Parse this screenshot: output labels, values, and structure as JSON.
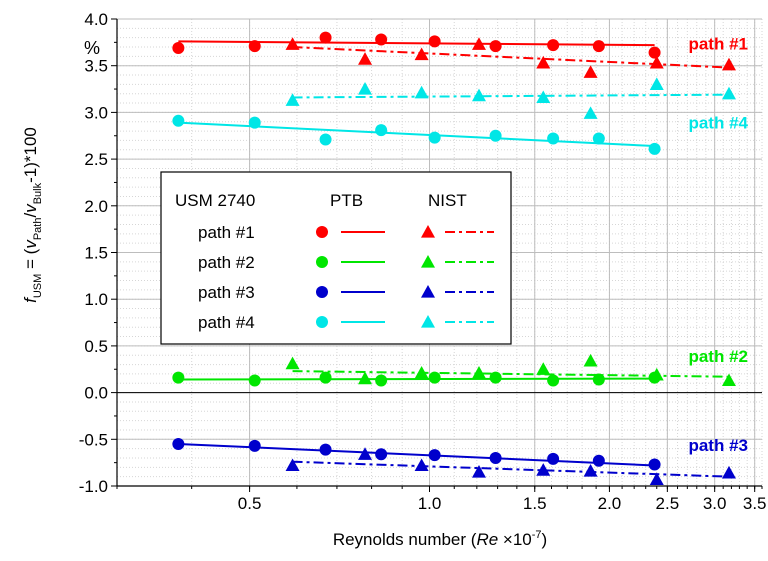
{
  "chart_data": {
    "type": "scatter",
    "xscale": "log",
    "xlim": [
      0.3,
      3.6
    ],
    "ylim": [
      -1.0,
      4.0
    ],
    "xlabel_prefix": "Reynolds number (",
    "xlabel_var": "Re",
    "xlabel_mid": " ×10",
    "xlabel_exp": "-7",
    "xlabel_suffix": ")",
    "ylabel_f": "f",
    "ylabel_usm": "USM",
    "ylabel_eq": " = (",
    "ylabel_v1": "v",
    "ylabel_path": "Path",
    "ylabel_slash": "/",
    "ylabel_v2": "v",
    "ylabel_bulk": "Bulk",
    "ylabel_tail": "-1)*100",
    "y_unit": "%",
    "grid": true,
    "x_ticks": [
      {
        "value": 0.5,
        "label": "0.5"
      },
      {
        "value": 1.0,
        "label": "1.0"
      },
      {
        "value": 1.5,
        "label": "1.5"
      },
      {
        "value": 2.0,
        "label": "2.0"
      },
      {
        "value": 2.5,
        "label": "2.5"
      },
      {
        "value": 3.0,
        "label": "3.0"
      },
      {
        "value": 3.5,
        "label": "3.5"
      }
    ],
    "y_ticks": [
      {
        "value": 4.0,
        "label": "4.0"
      },
      {
        "value": 3.5,
        "label": "3.5"
      },
      {
        "value": 3.0,
        "label": "3.0"
      },
      {
        "value": 2.5,
        "label": "2.5"
      },
      {
        "value": 2.0,
        "label": "2.0"
      },
      {
        "value": 1.5,
        "label": "1.5"
      },
      {
        "value": 1.0,
        "label": "1.0"
      },
      {
        "value": 0.5,
        "label": "0.5"
      },
      {
        "value": 0.0,
        "label": "0.0"
      },
      {
        "value": -0.5,
        "label": "-0.5"
      },
      {
        "value": -1.0,
        "label": "-1.0"
      }
    ],
    "series": [
      {
        "name": "path #1",
        "label": "path #1",
        "color": "#ff0000",
        "label_y": 3.74,
        "ptb": {
          "x": [
            0.38,
            0.51,
            0.67,
            0.83,
            1.02,
            1.29,
            1.61,
            1.92,
            2.38
          ],
          "y": [
            3.69,
            3.71,
            3.8,
            3.78,
            3.76,
            3.71,
            3.72,
            3.71,
            3.64
          ],
          "fit": [
            [
              0.38,
              3.76
            ],
            [
              2.38,
              3.72
            ]
          ]
        },
        "nist": {
          "x": [
            0.59,
            0.78,
            0.97,
            1.21,
            1.55,
            1.86,
            2.4,
            3.17
          ],
          "y": [
            3.73,
            3.57,
            3.62,
            3.73,
            3.53,
            3.43,
            3.53,
            3.51
          ],
          "fit": [
            [
              0.59,
              3.7
            ],
            [
              3.17,
              3.48
            ]
          ]
        }
      },
      {
        "name": "path #2",
        "label": "path #2",
        "color": "#00e600",
        "label_y": 0.39,
        "ptb": {
          "x": [
            0.38,
            0.51,
            0.67,
            0.83,
            1.02,
            1.29,
            1.61,
            1.92,
            2.38
          ],
          "y": [
            0.16,
            0.13,
            0.16,
            0.13,
            0.16,
            0.16,
            0.13,
            0.14,
            0.16
          ],
          "fit": [
            [
              0.38,
              0.14
            ],
            [
              2.38,
              0.15
            ]
          ]
        },
        "nist": {
          "x": [
            0.59,
            0.78,
            0.97,
            1.21,
            1.55,
            1.86,
            2.4,
            3.17
          ],
          "y": [
            0.31,
            0.15,
            0.21,
            0.21,
            0.25,
            0.34,
            0.19,
            0.13
          ],
          "fit": [
            [
              0.59,
              0.23
            ],
            [
              3.17,
              0.17
            ]
          ]
        }
      },
      {
        "name": "path #3",
        "label": "path #3",
        "color": "#0000cc",
        "label_y": -0.56,
        "ptb": {
          "x": [
            0.38,
            0.51,
            0.67,
            0.83,
            1.02,
            1.29,
            1.61,
            1.92,
            2.38
          ],
          "y": [
            -0.55,
            -0.57,
            -0.61,
            -0.66,
            -0.67,
            -0.7,
            -0.71,
            -0.73,
            -0.77
          ],
          "fit": [
            [
              0.38,
              -0.55
            ],
            [
              2.38,
              -0.78
            ]
          ]
        },
        "nist": {
          "x": [
            0.59,
            0.78,
            0.97,
            1.21,
            1.55,
            1.86,
            2.4,
            3.17
          ],
          "y": [
            -0.78,
            -0.66,
            -0.78,
            -0.85,
            -0.83,
            -0.84,
            -0.93,
            -0.86
          ],
          "fit": [
            [
              0.59,
              -0.74
            ],
            [
              3.17,
              -0.9
            ]
          ]
        }
      },
      {
        "name": "path #4",
        "label": "path #4",
        "color": "#00e6e6",
        "label_y": 2.89,
        "ptb": {
          "x": [
            0.38,
            0.51,
            0.67,
            0.83,
            1.02,
            1.29,
            1.61,
            1.92,
            2.38
          ],
          "y": [
            2.91,
            2.89,
            2.71,
            2.81,
            2.73,
            2.75,
            2.72,
            2.72,
            2.61
          ],
          "fit": [
            [
              0.38,
              2.89
            ],
            [
              2.38,
              2.64
            ]
          ]
        },
        "nist": {
          "x": [
            0.59,
            0.78,
            0.97,
            1.21,
            1.55,
            1.86,
            2.4,
            3.17
          ],
          "y": [
            3.13,
            3.25,
            3.21,
            3.18,
            3.16,
            2.99,
            3.3,
            3.2
          ],
          "fit": [
            [
              0.59,
              3.16
            ],
            [
              3.17,
              3.19
            ]
          ]
        }
      }
    ],
    "legend": {
      "placement": "center-left",
      "header_col1": "USM 2740",
      "header_col2": "PTB",
      "header_col3": "NIST"
    }
  }
}
